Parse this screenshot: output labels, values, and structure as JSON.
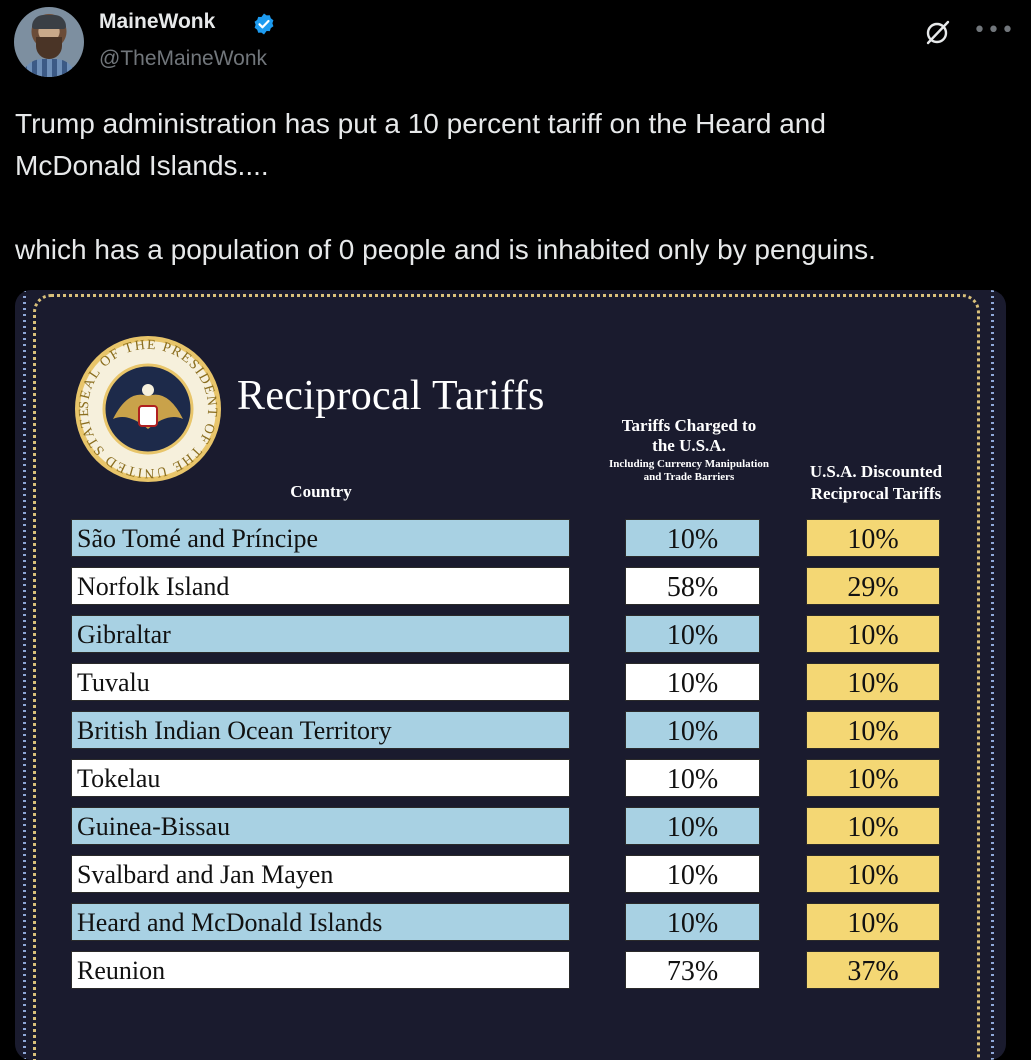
{
  "author": {
    "display_name": "MaineWonk",
    "handle": "@TheMaineWonk"
  },
  "tweet": {
    "text": "Trump administration has put a 10 percent tariff on the Heard and\nMcDonald Islands....\n\nwhich has a population of 0 people and is inhabited only by penguins."
  },
  "header_icons": [
    "grok-icon",
    "more-icon"
  ],
  "colors": {
    "row_blue": "#a8d1e3",
    "row_white": "#ffffff",
    "reciprocal_yellow": "#f4d774",
    "panel_bg": "#1a1b2e",
    "verified_blue": "#1d9bf0"
  },
  "seal_text": "SEAL OF THE PRESIDENT OF THE UNITED STATES",
  "chart_data": {
    "type": "table",
    "title": "Reciprocal Tariffs",
    "columns": [
      "Country",
      "Tariffs Charged to the U.S.A.",
      "Including Currency Manipulation and Trade Barriers",
      "U.S.A. Discounted Reciprocal Tariffs"
    ],
    "rows": [
      {
        "country": "São Tomé and Príncipe",
        "charged": "10%",
        "reciprocal": "10%"
      },
      {
        "country": "Norfolk Island",
        "charged": "58%",
        "reciprocal": "29%"
      },
      {
        "country": "Gibraltar",
        "charged": "10%",
        "reciprocal": "10%"
      },
      {
        "country": "Tuvalu",
        "charged": "10%",
        "reciprocal": "10%"
      },
      {
        "country": "British Indian Ocean Territory",
        "charged": "10%",
        "reciprocal": "10%"
      },
      {
        "country": "Tokelau",
        "charged": "10%",
        "reciprocal": "10%"
      },
      {
        "country": "Guinea-Bissau",
        "charged": "10%",
        "reciprocal": "10%"
      },
      {
        "country": "Svalbard and Jan Mayen",
        "charged": "10%",
        "reciprocal": "10%"
      },
      {
        "country": "Heard and McDonald Islands",
        "charged": "10%",
        "reciprocal": "10%"
      },
      {
        "country": "Reunion",
        "charged": "73%",
        "reciprocal": "37%"
      }
    ]
  }
}
